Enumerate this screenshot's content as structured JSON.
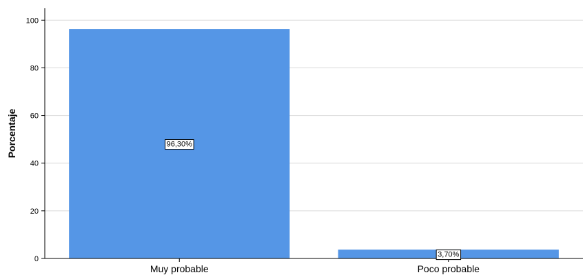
{
  "chart_data": {
    "type": "bar",
    "categories": [
      "Muy probable",
      "Poco probable"
    ],
    "values": [
      96.3,
      3.7
    ],
    "data_labels": [
      "96,30%",
      "3,70%"
    ],
    "title": "",
    "xlabel": "",
    "ylabel": "Porcentaje",
    "ylim": [
      0,
      105
    ],
    "yticks": [
      0,
      20,
      40,
      60,
      80,
      100
    ],
    "ytick_labels": [
      "0",
      "20",
      "40",
      "60",
      "80",
      "100"
    ],
    "grid": true,
    "legend": "none",
    "colors": {
      "bar": "#5596E6",
      "grid": "#D9D9D9",
      "axis": "#000000"
    }
  }
}
